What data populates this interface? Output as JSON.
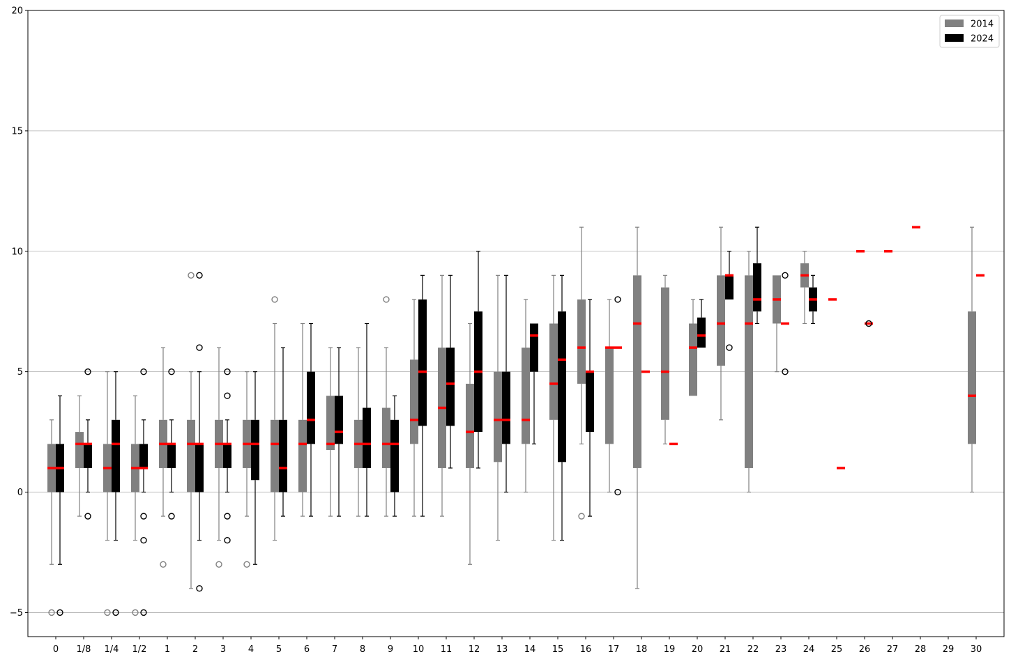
{
  "chart_data": {
    "type": "boxplot",
    "title": "",
    "xlabel": "",
    "ylabel": "",
    "ylim": [
      -6,
      20
    ],
    "y_ticks": [
      -5,
      0,
      5,
      10,
      15,
      20
    ],
    "y_tick_labels": [
      "−5",
      "0",
      "5",
      "10",
      "15",
      "20"
    ],
    "grid": "horizontal",
    "legend_position": "top-right",
    "categories": [
      "0",
      "1/8",
      "1/4",
      "1/2",
      "1",
      "2",
      "3",
      "4",
      "5",
      "6",
      "7",
      "8",
      "9",
      "10",
      "11",
      "12",
      "13",
      "14",
      "15",
      "16",
      "17",
      "18",
      "19",
      "20",
      "21",
      "22",
      "23",
      "24",
      "25",
      "26",
      "27",
      "28",
      "29",
      "30"
    ],
    "median_color": "#ff0000",
    "series": [
      {
        "name": "2014",
        "color": "#808080",
        "boxes": [
          {
            "cat": "0",
            "whislo": -3,
            "q1": 0,
            "med": 1,
            "q3": 2,
            "whishi": 3,
            "fliers": [
              -5
            ]
          },
          {
            "cat": "1/8",
            "whislo": -1,
            "q1": 1,
            "med": 2,
            "q3": 2.5,
            "whishi": 4,
            "fliers": []
          },
          {
            "cat": "1/4",
            "whislo": -2,
            "q1": 0,
            "med": 1,
            "q3": 2,
            "whishi": 5,
            "fliers": [
              -5
            ]
          },
          {
            "cat": "1/2",
            "whislo": -2,
            "q1": 0,
            "med": 1,
            "q3": 2,
            "whishi": 4,
            "fliers": [
              -5
            ]
          },
          {
            "cat": "1",
            "whislo": -1,
            "q1": 1,
            "med": 2,
            "q3": 3,
            "whishi": 6,
            "fliers": [
              -3
            ]
          },
          {
            "cat": "2",
            "whislo": -4,
            "q1": 0,
            "med": 2,
            "q3": 3,
            "whishi": 5,
            "fliers": [
              9
            ]
          },
          {
            "cat": "3",
            "whislo": -2,
            "q1": 1,
            "med": 2,
            "q3": 3,
            "whishi": 6,
            "fliers": [
              -3
            ]
          },
          {
            "cat": "4",
            "whislo": -1,
            "q1": 1,
            "med": 2,
            "q3": 3,
            "whishi": 5,
            "fliers": [
              -3
            ]
          },
          {
            "cat": "5",
            "whislo": -2,
            "q1": 0,
            "med": 2,
            "q3": 3,
            "whishi": 7,
            "fliers": [
              8
            ]
          },
          {
            "cat": "6",
            "whislo": -1,
            "q1": 0,
            "med": 2,
            "q3": 3,
            "whishi": 7,
            "fliers": []
          },
          {
            "cat": "7",
            "whislo": -1,
            "q1": 1.75,
            "med": 2,
            "q3": 4,
            "whishi": 6,
            "fliers": []
          },
          {
            "cat": "8",
            "whislo": -1,
            "q1": 1,
            "med": 2,
            "q3": 3,
            "whishi": 6,
            "fliers": []
          },
          {
            "cat": "9",
            "whislo": -1,
            "q1": 1,
            "med": 2,
            "q3": 3.5,
            "whishi": 6,
            "fliers": [
              8
            ]
          },
          {
            "cat": "10",
            "whislo": -1,
            "q1": 2,
            "med": 3,
            "q3": 5.5,
            "whishi": 8,
            "fliers": []
          },
          {
            "cat": "11",
            "whislo": -1,
            "q1": 1,
            "med": 3.5,
            "q3": 6,
            "whishi": 9,
            "fliers": []
          },
          {
            "cat": "12",
            "whislo": -3,
            "q1": 1,
            "med": 2.5,
            "q3": 4.5,
            "whishi": 7,
            "fliers": []
          },
          {
            "cat": "13",
            "whislo": -2,
            "q1": 1.25,
            "med": 3,
            "q3": 5,
            "whishi": 9,
            "fliers": []
          },
          {
            "cat": "14",
            "whislo": 0,
            "q1": 2,
            "med": 3,
            "q3": 6,
            "whishi": 8,
            "fliers": []
          },
          {
            "cat": "15",
            "whislo": -2,
            "q1": 3,
            "med": 4.5,
            "q3": 7,
            "whishi": 9,
            "fliers": []
          },
          {
            "cat": "16",
            "whislo": 2,
            "q1": 4.5,
            "med": 6,
            "q3": 8,
            "whishi": 11,
            "fliers": [
              -1
            ]
          },
          {
            "cat": "17",
            "whislo": 0,
            "q1": 2,
            "med": 6,
            "q3": 6,
            "whishi": 8,
            "fliers": []
          },
          {
            "cat": "18",
            "whislo": -4,
            "q1": 1,
            "med": 7,
            "q3": 9,
            "whishi": 11,
            "fliers": []
          },
          {
            "cat": "19",
            "whislo": 2,
            "q1": 3,
            "med": 5,
            "q3": 8.5,
            "whishi": 9,
            "fliers": []
          },
          {
            "cat": "20",
            "whislo": 4,
            "q1": 4,
            "med": 6,
            "q3": 7,
            "whishi": 8,
            "fliers": []
          },
          {
            "cat": "21",
            "whislo": 3,
            "q1": 5.25,
            "med": 7,
            "q3": 9,
            "whishi": 11,
            "fliers": []
          },
          {
            "cat": "22",
            "whislo": 0,
            "q1": 1,
            "med": 7,
            "q3": 9,
            "whishi": 10,
            "fliers": []
          },
          {
            "cat": "23",
            "whislo": 5,
            "q1": 7,
            "med": 8,
            "q3": 9,
            "whishi": 9,
            "fliers": []
          },
          {
            "cat": "24",
            "whislo": 7,
            "q1": 8.5,
            "med": 9,
            "q3": 9.5,
            "whishi": 10,
            "fliers": []
          },
          {
            "cat": "25",
            "whislo": 8,
            "q1": 8,
            "med": 8,
            "q3": 8,
            "whishi": 8,
            "fliers": []
          },
          {
            "cat": "26",
            "whislo": 10,
            "q1": 10,
            "med": 10,
            "q3": 10,
            "whishi": 10,
            "fliers": []
          },
          {
            "cat": "27",
            "whislo": 10,
            "q1": 10,
            "med": 10,
            "q3": 10,
            "whishi": 10,
            "fliers": []
          },
          {
            "cat": "28",
            "whislo": 11,
            "q1": 11,
            "med": 11,
            "q3": 11,
            "whishi": 11,
            "fliers": []
          },
          {
            "cat": "30",
            "whislo": 0,
            "q1": 2,
            "med": 4,
            "q3": 7.5,
            "whishi": 11,
            "fliers": []
          }
        ]
      },
      {
        "name": "2024",
        "color": "#000000",
        "boxes": [
          {
            "cat": "0",
            "whislo": -3,
            "q1": 0,
            "med": 1,
            "q3": 2,
            "whishi": 4,
            "fliers": [
              -5
            ]
          },
          {
            "cat": "1/8",
            "whislo": 0,
            "q1": 1,
            "med": 2,
            "q3": 2,
            "whishi": 3,
            "fliers": [
              5,
              -1
            ]
          },
          {
            "cat": "1/4",
            "whislo": -2,
            "q1": 0,
            "med": 2,
            "q3": 3,
            "whishi": 5,
            "fliers": [
              -5
            ]
          },
          {
            "cat": "1/2",
            "whislo": 0,
            "q1": 1,
            "med": 1,
            "q3": 2,
            "whishi": 3,
            "fliers": [
              5,
              -1,
              -2,
              -5
            ]
          },
          {
            "cat": "1",
            "whislo": 0,
            "q1": 1,
            "med": 2,
            "q3": 2,
            "whishi": 3,
            "fliers": [
              5,
              -1
            ]
          },
          {
            "cat": "2",
            "whislo": -2,
            "q1": 0,
            "med": 2,
            "q3": 2,
            "whishi": 5,
            "fliers": [
              9,
              6,
              -4
            ]
          },
          {
            "cat": "3",
            "whislo": 0,
            "q1": 1,
            "med": 2,
            "q3": 2,
            "whishi": 3,
            "fliers": [
              5,
              4,
              -1,
              -2
            ]
          },
          {
            "cat": "4",
            "whislo": -3,
            "q1": 0.5,
            "med": 2,
            "q3": 3,
            "whishi": 5,
            "fliers": []
          },
          {
            "cat": "5",
            "whislo": -1,
            "q1": 0,
            "med": 1,
            "q3": 3,
            "whishi": 6,
            "fliers": []
          },
          {
            "cat": "6",
            "whislo": -1,
            "q1": 2,
            "med": 3,
            "q3": 5,
            "whishi": 7,
            "fliers": []
          },
          {
            "cat": "7",
            "whislo": -1,
            "q1": 2,
            "med": 2.5,
            "q3": 4,
            "whishi": 6,
            "fliers": []
          },
          {
            "cat": "8",
            "whislo": -1,
            "q1": 1,
            "med": 2,
            "q3": 3.5,
            "whishi": 7,
            "fliers": []
          },
          {
            "cat": "9",
            "whislo": -1,
            "q1": 0,
            "med": 2,
            "q3": 3,
            "whishi": 4,
            "fliers": []
          },
          {
            "cat": "10",
            "whislo": -1,
            "q1": 2.75,
            "med": 5,
            "q3": 8,
            "whishi": 9,
            "fliers": []
          },
          {
            "cat": "11",
            "whislo": 1,
            "q1": 2.75,
            "med": 4.5,
            "q3": 6,
            "whishi": 9,
            "fliers": []
          },
          {
            "cat": "12",
            "whislo": 1,
            "q1": 2.5,
            "med": 5,
            "q3": 7.5,
            "whishi": 10,
            "fliers": []
          },
          {
            "cat": "13",
            "whislo": 0,
            "q1": 2,
            "med": 3,
            "q3": 5,
            "whishi": 9,
            "fliers": []
          },
          {
            "cat": "14",
            "whislo": 2,
            "q1": 5,
            "med": 6.5,
            "q3": 7,
            "whishi": 7,
            "fliers": []
          },
          {
            "cat": "15",
            "whislo": -2,
            "q1": 1.25,
            "med": 5.5,
            "q3": 7.5,
            "whishi": 9,
            "fliers": []
          },
          {
            "cat": "16",
            "whislo": -1,
            "q1": 2.5,
            "med": 5,
            "q3": 5,
            "whishi": 8,
            "fliers": []
          },
          {
            "cat": "17",
            "whislo": 6,
            "q1": 6,
            "med": 6,
            "q3": 6,
            "whishi": 6,
            "fliers": [
              8,
              0
            ]
          },
          {
            "cat": "18",
            "whislo": 5,
            "q1": 5,
            "med": 5,
            "q3": 5,
            "whishi": 5,
            "fliers": []
          },
          {
            "cat": "19",
            "whislo": 2,
            "q1": 2,
            "med": 2,
            "q3": 2,
            "whishi": 2,
            "fliers": []
          },
          {
            "cat": "20",
            "whislo": 6,
            "q1": 6,
            "med": 6.5,
            "q3": 7.25,
            "whishi": 8,
            "fliers": []
          },
          {
            "cat": "21",
            "whislo": 8,
            "q1": 8,
            "med": 9,
            "q3": 9,
            "whishi": 10,
            "fliers": [
              6
            ]
          },
          {
            "cat": "22",
            "whislo": 7,
            "q1": 7.5,
            "med": 8,
            "q3": 9.5,
            "whishi": 11,
            "fliers": []
          },
          {
            "cat": "23",
            "whislo": 7,
            "q1": 7,
            "med": 7,
            "q3": 7,
            "whishi": 7,
            "fliers": [
              9,
              5
            ]
          },
          {
            "cat": "24",
            "whislo": 7,
            "q1": 7.5,
            "med": 8,
            "q3": 8.5,
            "whishi": 9,
            "fliers": []
          },
          {
            "cat": "25",
            "whislo": 1,
            "q1": 1,
            "med": 1,
            "q3": 1,
            "whishi": 1,
            "fliers": []
          },
          {
            "cat": "26",
            "whislo": 7,
            "q1": 7,
            "med": 7,
            "q3": 7,
            "whishi": 7,
            "fliers": [
              7
            ]
          },
          {
            "cat": "30",
            "whislo": 9,
            "q1": 9,
            "med": 9,
            "q3": 9,
            "whishi": 9,
            "fliers": []
          }
        ]
      }
    ]
  }
}
